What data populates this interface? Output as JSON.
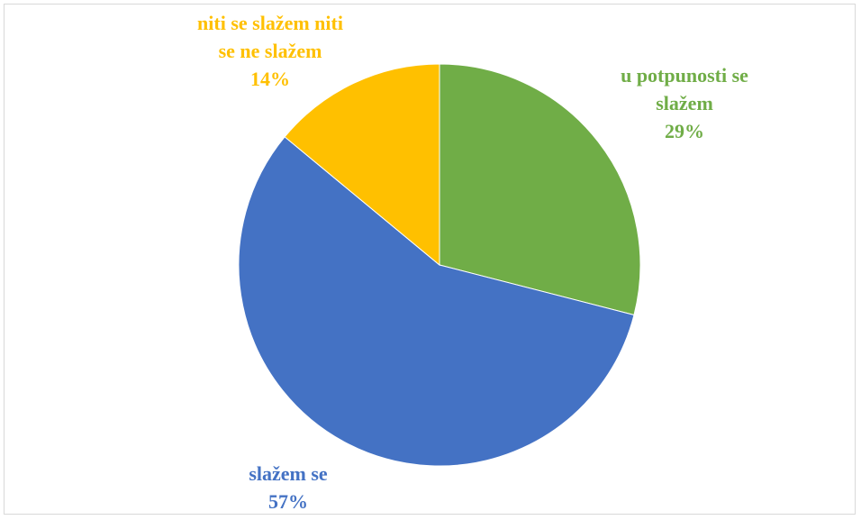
{
  "chart_data": {
    "type": "pie",
    "categories": [
      "u potpunosti se slažem",
      "slažem se",
      "niti se slažem niti se ne slažem"
    ],
    "values": [
      29,
      57,
      14
    ],
    "value_labels": [
      "29%",
      "57%",
      "14%"
    ],
    "colors": [
      "#70ad47",
      "#4472c4",
      "#ffc000"
    ]
  }
}
